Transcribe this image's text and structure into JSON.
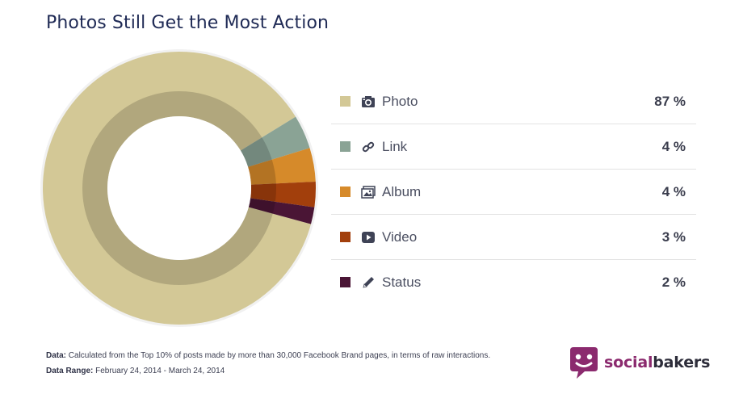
{
  "title": "Photos Still Get the Most Action",
  "chart_data": {
    "type": "pie",
    "categories": [
      "Photo",
      "Link",
      "Album",
      "Video",
      "Status"
    ],
    "values": [
      87,
      4,
      4,
      3,
      2
    ],
    "value_labels": [
      "87 %",
      "4 %",
      "4 %",
      "3 %",
      "2 %"
    ],
    "colors": [
      "#d3c896",
      "#8aa395",
      "#d68a2a",
      "#a23f0c",
      "#4a1535"
    ],
    "icons": [
      "camera-icon",
      "link-icon",
      "album-icon",
      "video-icon",
      "pencil-icon"
    ],
    "legend_position": "right"
  },
  "footer": {
    "data_label": "Data:",
    "data_text": "Calculated from the Top 10% of posts made by more than 30,000 Facebook Brand pages, in terms of raw interactions.",
    "range_label": "Data Range:",
    "range_text": "February 24, 2014 - March 24, 2014"
  },
  "logo": {
    "part1": "social",
    "part2": "bakers",
    "color": "#8b2a6e"
  }
}
